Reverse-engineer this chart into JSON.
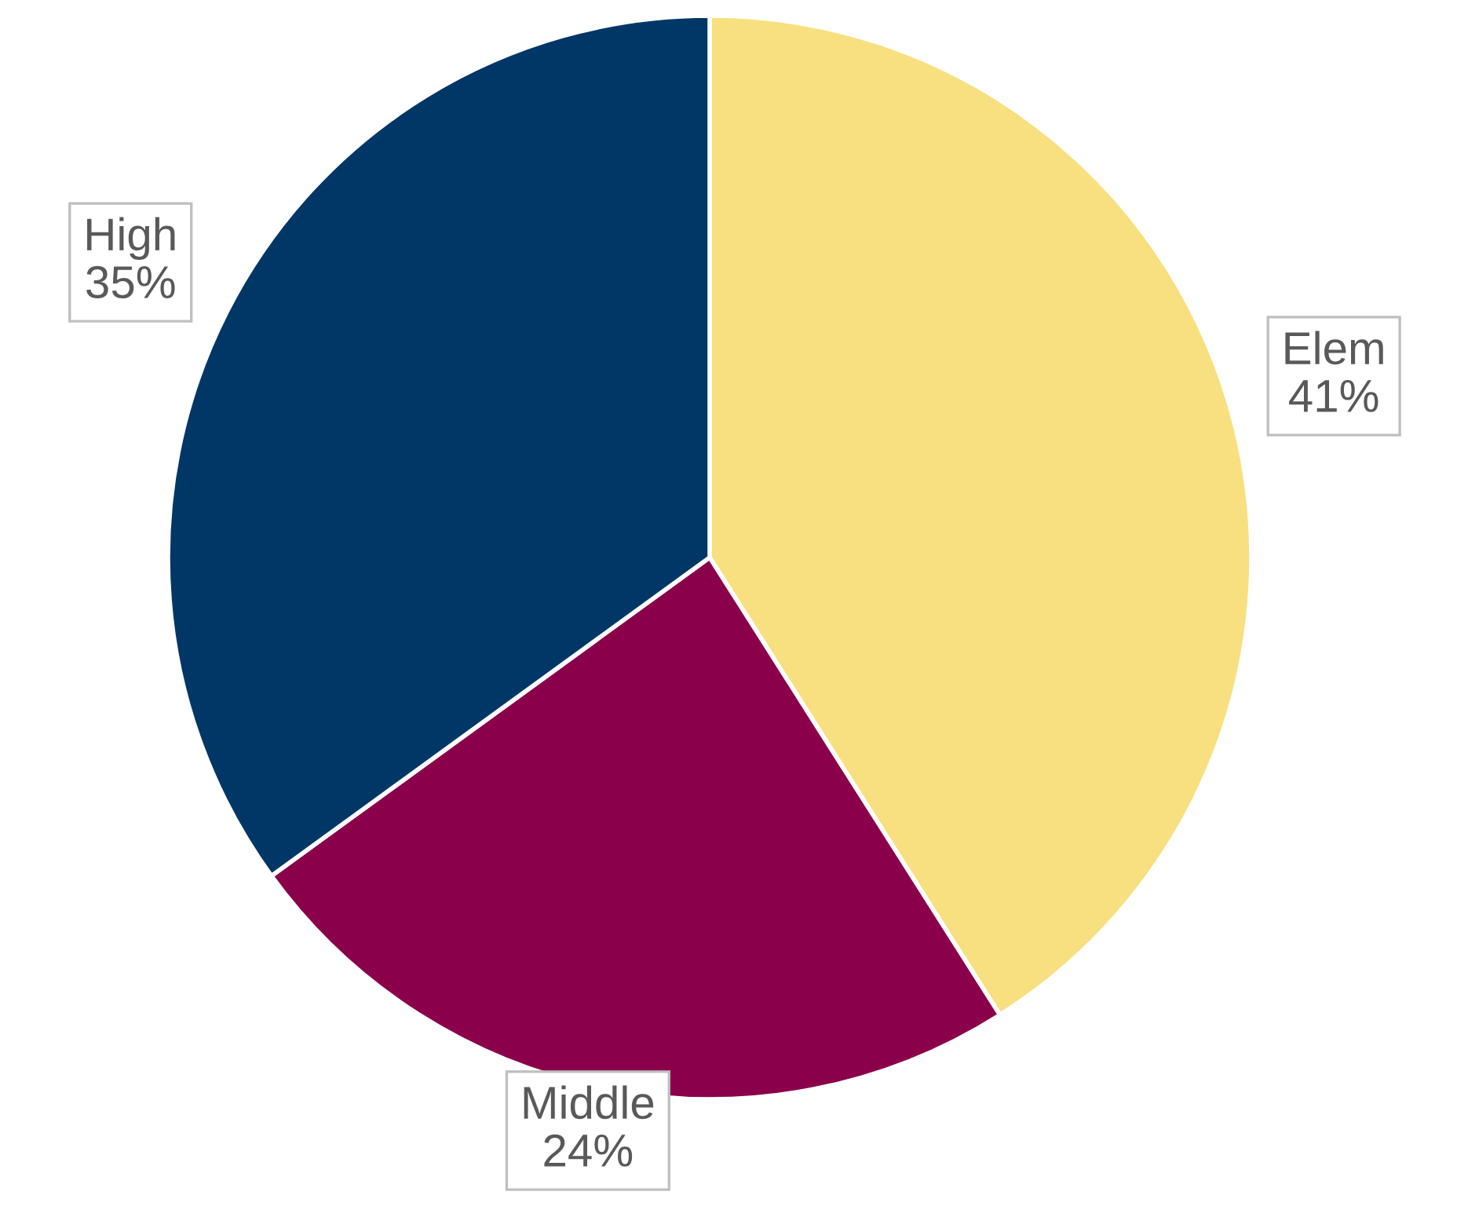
{
  "chart_data": {
    "type": "pie",
    "categories": [
      "Elem",
      "Middle",
      "High"
    ],
    "values": [
      41,
      24,
      35
    ],
    "colors": [
      "#f8e080",
      "#8b004a",
      "#003767"
    ],
    "value_labels": [
      "41%",
      "24%",
      "35%"
    ]
  }
}
